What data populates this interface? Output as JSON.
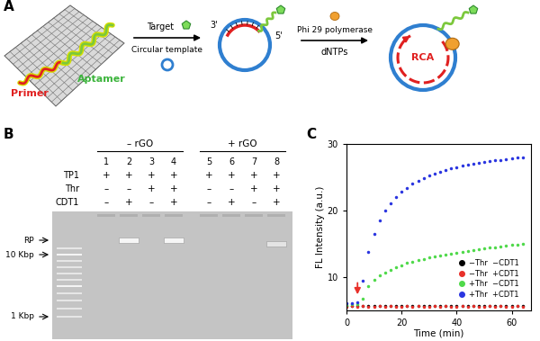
{
  "panel_a": {
    "label": "A",
    "primer": "Primer",
    "aptamer": "Aptamer",
    "step1_above": "Target",
    "step1_below": "Circular template",
    "end_3": "3'",
    "end_5": "5'",
    "step2_above": "Phi 29 polymerase",
    "step2_below": "dNTPs",
    "product": "RCA"
  },
  "panel_b": {
    "label": "B",
    "groups": [
      {
        "label": "– rGO",
        "lanes": [
          1,
          2,
          3,
          4
        ]
      },
      {
        "label": "+ rGO",
        "lanes": [
          5,
          6,
          7,
          8
        ]
      }
    ],
    "lanes": [
      1,
      2,
      3,
      4,
      5,
      6,
      7,
      8
    ],
    "rows": [
      {
        "name": "TP1",
        "signs": [
          "+",
          "+",
          "+",
          "+",
          "+",
          "+",
          "+",
          "+"
        ]
      },
      {
        "name": "Thr",
        "signs": [
          "–",
          "–",
          "+",
          "+",
          "–",
          "–",
          "+",
          "+"
        ]
      },
      {
        "name": "CDT1",
        "signs": [
          "–",
          "+",
          "–",
          "+",
          "–",
          "+",
          "–",
          "+"
        ]
      }
    ],
    "markers": [
      {
        "label": "RP"
      },
      {
        "label": "10 Kbp"
      },
      {
        "label": "1 Kbp"
      }
    ],
    "rp_band_lanes": [
      2,
      4,
      8
    ]
  },
  "chart_data": {
    "type": "scatter",
    "panel_label": "C",
    "x_label": "Time (min)",
    "y_label": "FL Intensity (a.u.)",
    "x": [
      0,
      2,
      4,
      6,
      8,
      10,
      12,
      14,
      16,
      18,
      20,
      22,
      24,
      26,
      28,
      30,
      32,
      34,
      36,
      38,
      40,
      42,
      44,
      46,
      48,
      50,
      52,
      54,
      56,
      58,
      60,
      62,
      64
    ],
    "xlim": [
      0,
      67
    ],
    "xticks": [
      0,
      20,
      40,
      60
    ],
    "ylim": [
      5,
      30
    ],
    "yticks": [
      10,
      20,
      30
    ],
    "marker": "o",
    "legend": "lower right",
    "series": [
      {
        "name": "−Thr  −CDT1",
        "color": "#000000",
        "values": [
          5.6,
          5.7,
          5.6,
          5.7,
          5.6,
          5.6,
          5.7,
          5.6,
          5.7,
          5.6,
          5.6,
          5.7,
          5.6,
          5.7,
          5.6,
          5.6,
          5.7,
          5.6,
          5.7,
          5.6,
          5.6,
          5.7,
          5.6,
          5.7,
          5.6,
          5.6,
          5.7,
          5.6,
          5.7,
          5.6,
          5.6,
          5.7,
          5.6
        ]
      },
      {
        "name": "−Thr  +CDT1",
        "color": "#e8302a",
        "values": [
          5.5,
          5.6,
          5.5,
          5.6,
          5.5,
          5.5,
          5.6,
          5.5,
          5.6,
          5.5,
          5.5,
          5.6,
          5.5,
          5.6,
          5.5,
          5.5,
          5.6,
          5.5,
          5.6,
          5.5,
          5.5,
          5.6,
          5.5,
          5.6,
          5.5,
          5.5,
          5.6,
          5.5,
          5.6,
          5.5,
          5.5,
          5.6,
          5.5
        ]
      },
      {
        "name": "+Thr  −CDT1",
        "color": "#4fd94a",
        "values": [
          5.8,
          5.9,
          5.9,
          6.8,
          8.6,
          9.6,
          10.2,
          10.7,
          11.1,
          11.5,
          11.8,
          12.1,
          12.3,
          12.5,
          12.7,
          12.9,
          13.1,
          13.2,
          13.4,
          13.5,
          13.7,
          13.8,
          13.9,
          14.0,
          14.2,
          14.3,
          14.4,
          14.5,
          14.6,
          14.7,
          14.8,
          14.9,
          15.0
        ]
      },
      {
        "name": "+Thr  +CDT1",
        "color": "#2a35e0",
        "values": [
          6.0,
          6.1,
          6.2,
          9.5,
          13.8,
          16.5,
          18.5,
          20.0,
          21.1,
          22.0,
          22.8,
          23.4,
          24.0,
          24.4,
          24.8,
          25.2,
          25.5,
          25.8,
          26.1,
          26.3,
          26.5,
          26.7,
          26.9,
          27.0,
          27.2,
          27.3,
          27.4,
          27.5,
          27.6,
          27.7,
          27.8,
          27.9,
          27.9
        ]
      }
    ],
    "arrow": {
      "x": 4,
      "y_from": 9.5,
      "y_to": 7.0,
      "color": "#e8302a"
    }
  }
}
